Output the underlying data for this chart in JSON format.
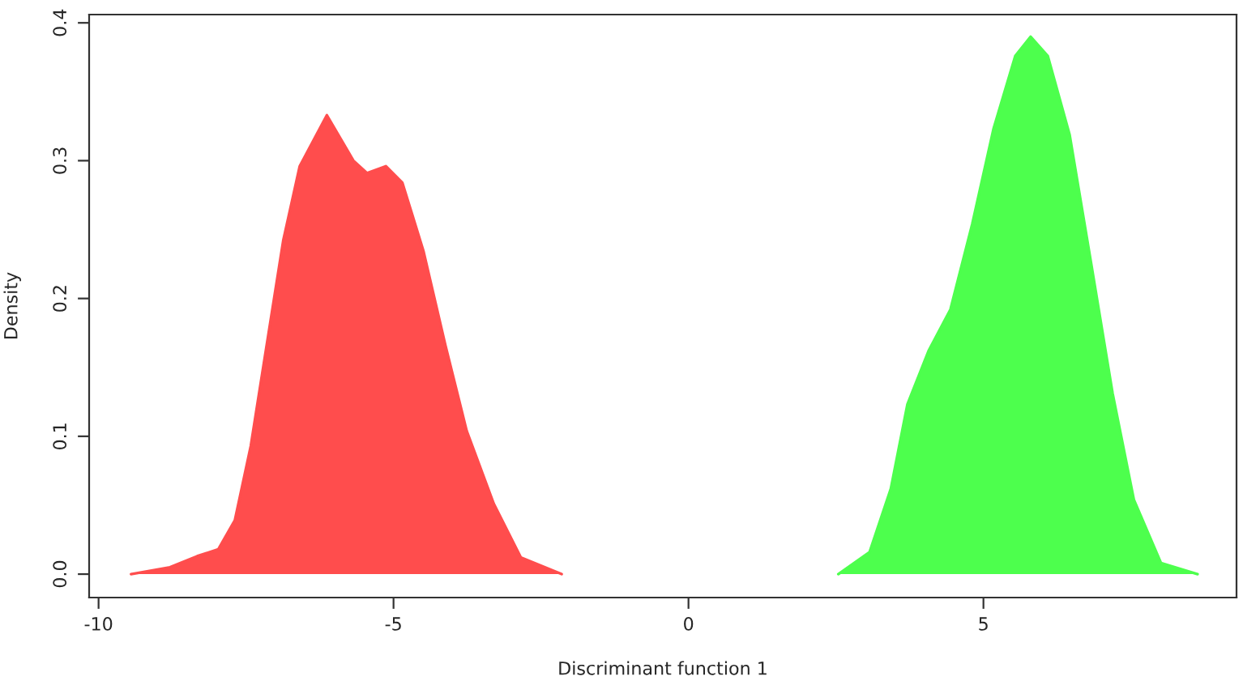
{
  "chart_data": {
    "type": "area",
    "xlabel": "Discriminant function 1",
    "ylabel": "Density",
    "xlim": [
      -10.16,
      9.29
    ],
    "ylim": [
      -0.017,
      0.406
    ],
    "xticks": [
      -10,
      -5,
      0,
      5
    ],
    "yticks": [
      {
        "value": 0,
        "label": "0.0"
      },
      {
        "value": 0.1,
        "label": "0.1"
      },
      {
        "value": 0.2,
        "label": "0.2"
      },
      {
        "value": 0.3,
        "label": "0.3"
      },
      {
        "value": 0.4,
        "label": "0.4"
      }
    ],
    "grid": false,
    "legend": false,
    "series": [
      {
        "color": "#ff4d4d",
        "x": [
          -9.45,
          -8.79,
          -8.33,
          -7.97,
          -7.69,
          -7.42,
          -7.14,
          -6.87,
          -6.59,
          -6.13,
          -5.68,
          -5.45,
          -5.13,
          -4.85,
          -4.49,
          -4.12,
          -3.76,
          -3.3,
          -2.84,
          -2.15
        ],
        "values": [
          0,
          0.005,
          0.013,
          0.018,
          0.039,
          0.093,
          0.169,
          0.242,
          0.296,
          0.333,
          0.3,
          0.291,
          0.296,
          0.284,
          0.234,
          0.166,
          0.104,
          0.051,
          0.012,
          0
        ]
      },
      {
        "color": "#4dff4d",
        "x": [
          2.54,
          3.07,
          3.43,
          3.71,
          4.07,
          4.44,
          4.81,
          5.17,
          5.54,
          5.8,
          6.09,
          6.46,
          6.82,
          7.19,
          7.55,
          8.01,
          8.63
        ],
        "values": [
          0,
          0.016,
          0.062,
          0.123,
          0.162,
          0.192,
          0.254,
          0.323,
          0.376,
          0.39,
          0.376,
          0.319,
          0.227,
          0.131,
          0.054,
          0.008,
          0
        ]
      }
    ]
  }
}
